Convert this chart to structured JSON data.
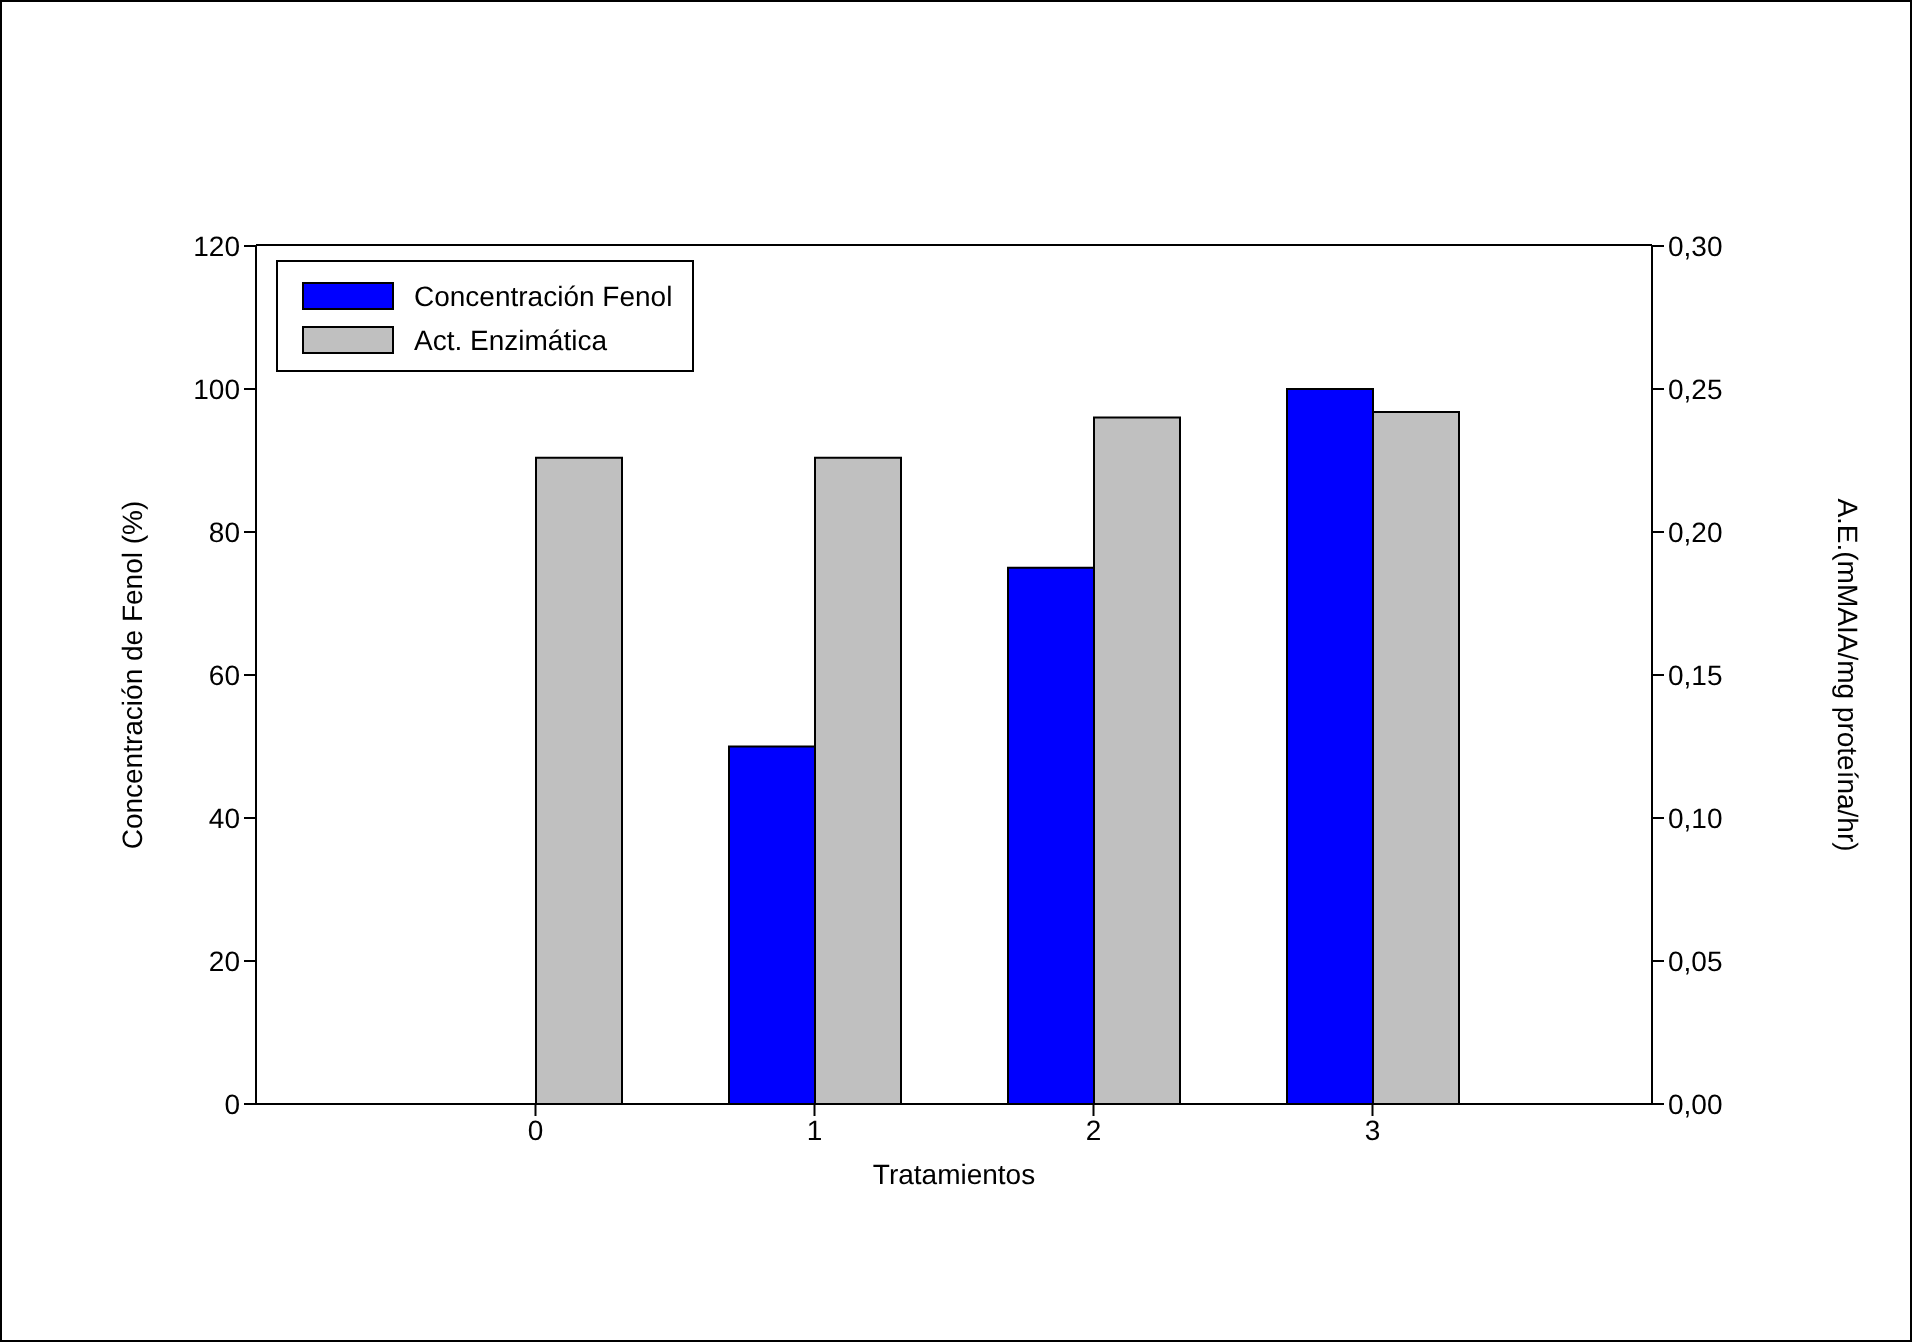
{
  "chart_data": {
    "type": "bar",
    "xlabel": "Tratamientos",
    "ylabel": "Concentración de Fenol (%)",
    "y2label": "A.E.(mMAIA/mg proteína/hr)",
    "categories": [
      "0",
      "1",
      "2",
      "3"
    ],
    "series": [
      {
        "name": "Concentración Fenol",
        "color": "#0000ff",
        "values": [
          null,
          50,
          75,
          100
        ]
      },
      {
        "name": "Act. Enzimática",
        "color": "#c0c0c0",
        "axis": "y2",
        "values": [
          0.226,
          0.226,
          0.24,
          0.242
        ]
      }
    ],
    "ylim": [
      0,
      120
    ],
    "yticks": [
      0,
      20,
      40,
      60,
      80,
      100,
      120
    ],
    "y2lim": [
      0,
      0.3
    ],
    "y2ticks": [
      {
        "value": 0,
        "label": "0,00"
      },
      {
        "value": 0.05,
        "label": "0,05"
      },
      {
        "value": 0.1,
        "label": "0,10"
      },
      {
        "value": 0.15,
        "label": "0,15"
      },
      {
        "value": 0.2,
        "label": "0,20"
      },
      {
        "value": 0.25,
        "label": "0,25"
      },
      {
        "value": 0.3,
        "label": "0,30"
      }
    ],
    "legend": "top left"
  }
}
